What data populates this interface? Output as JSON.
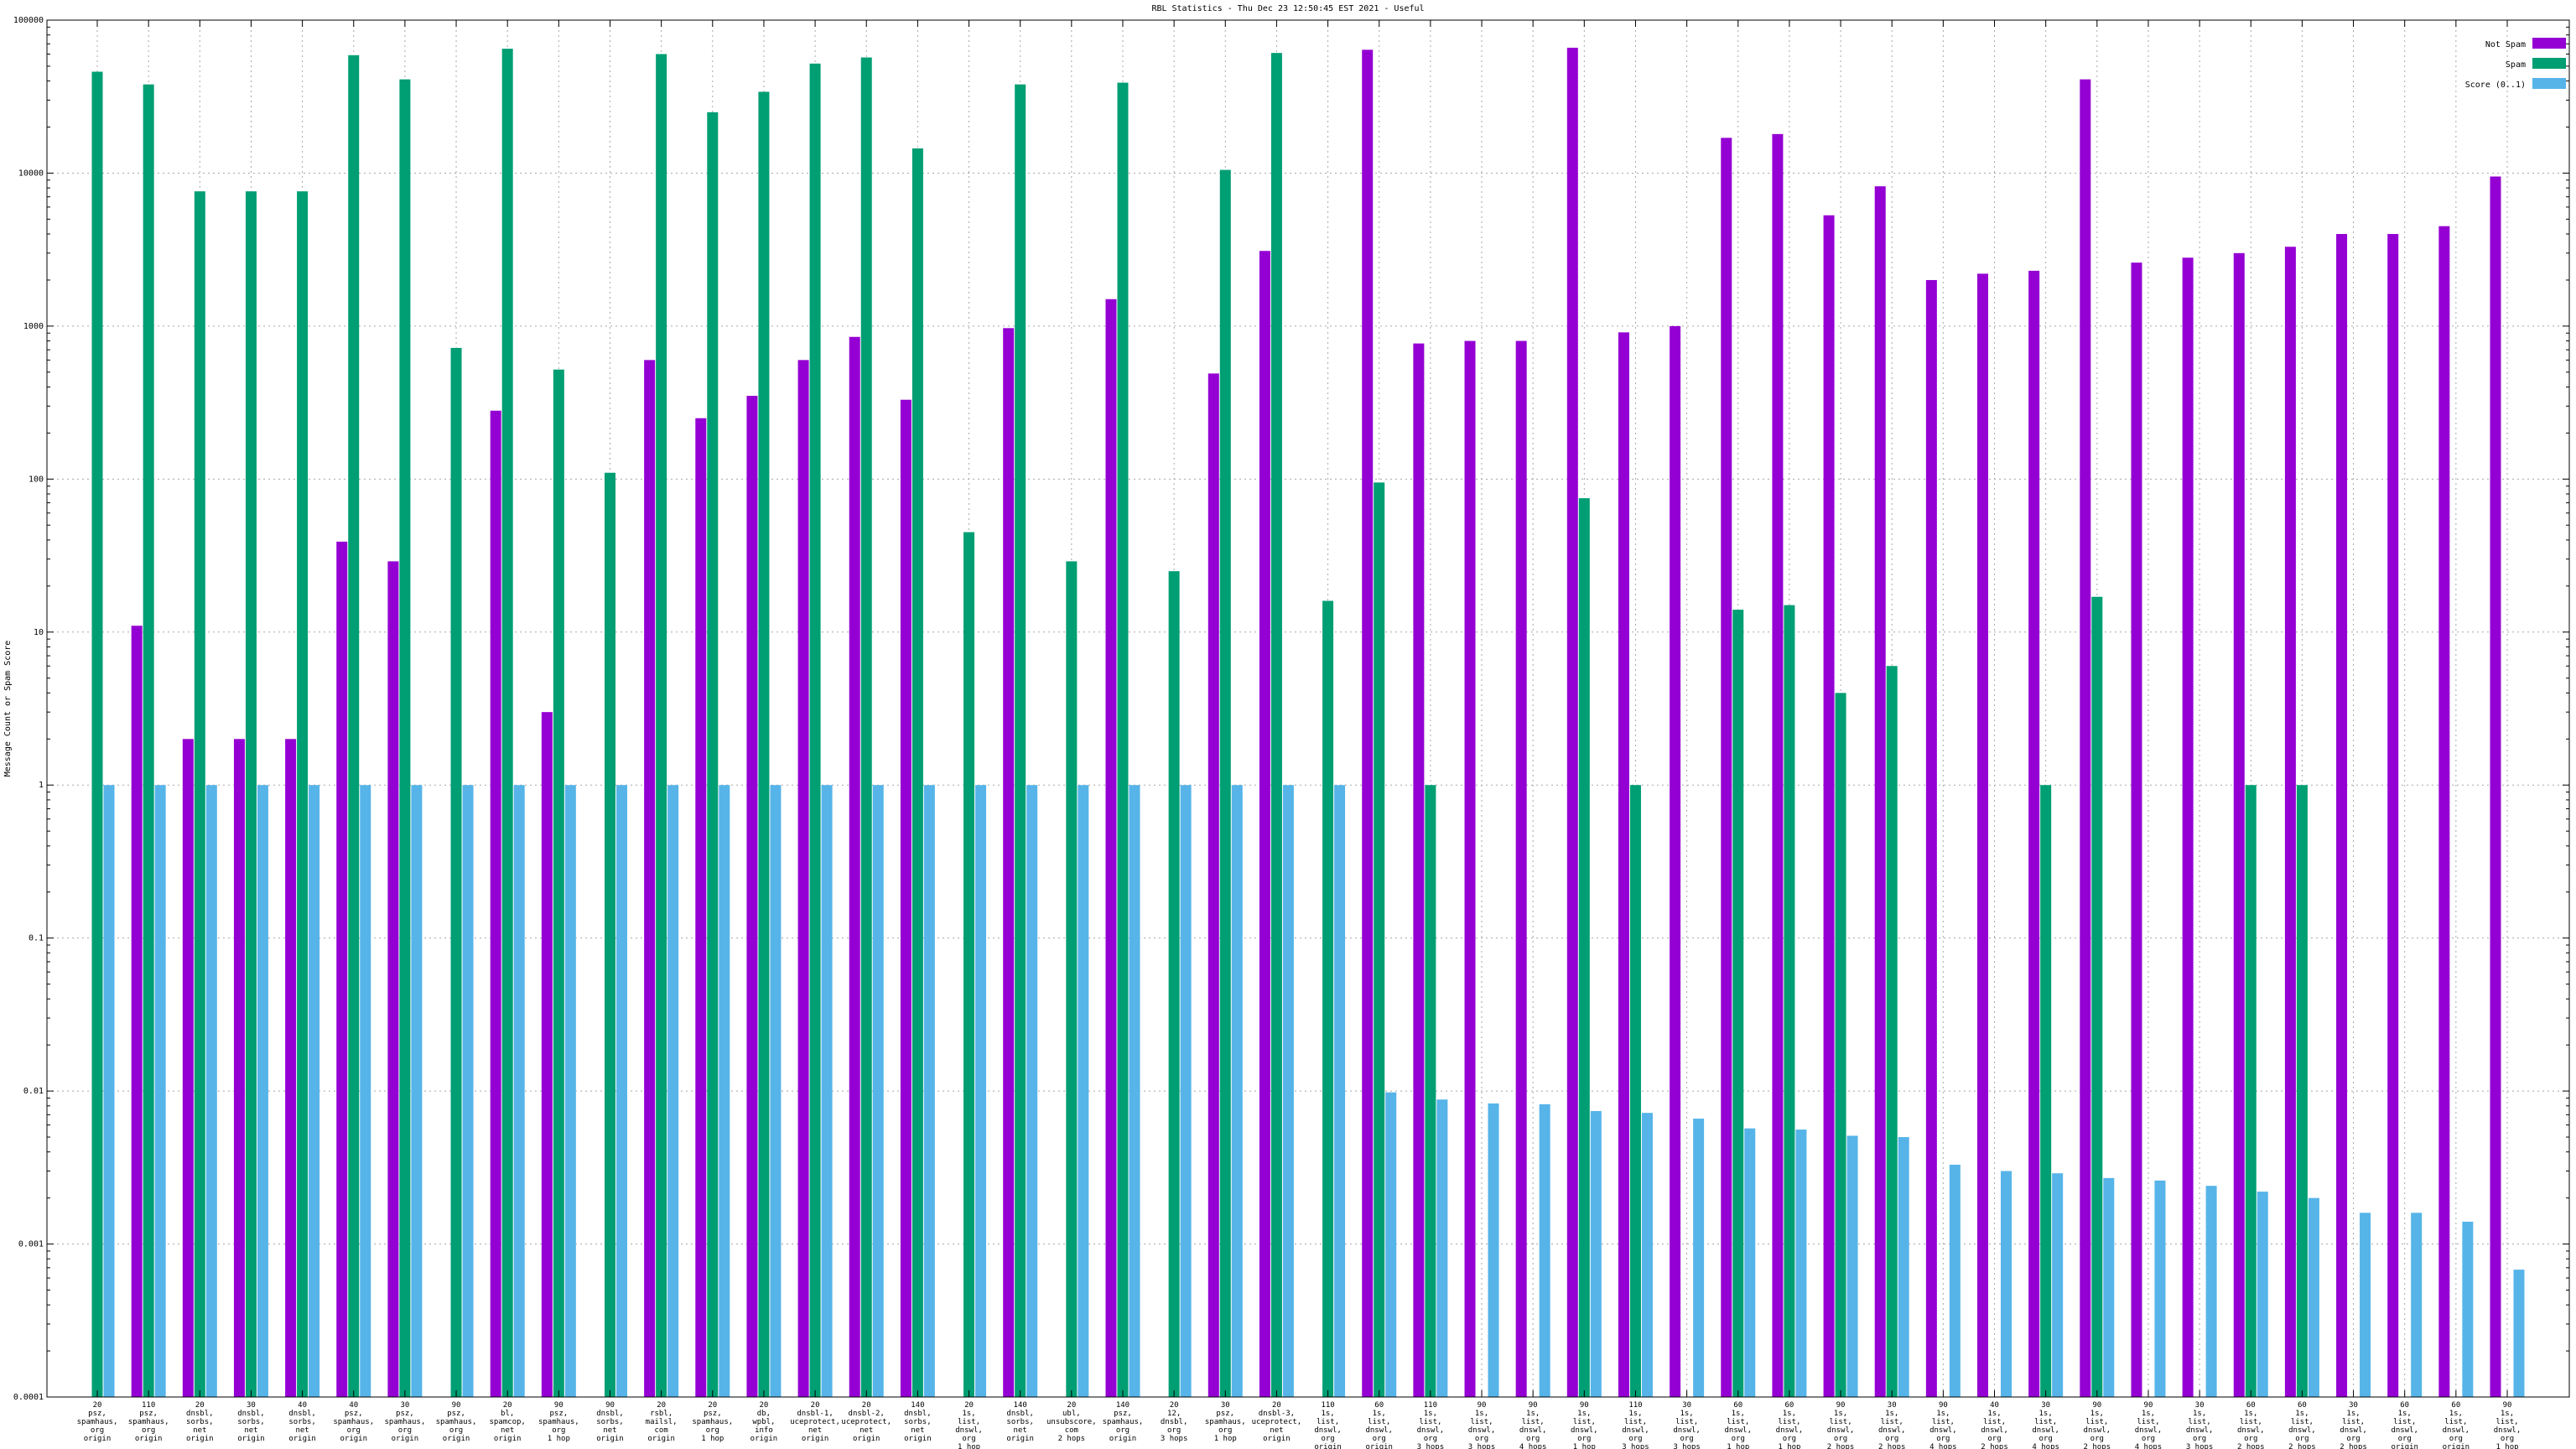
{
  "chart_data": {
    "type": "bar",
    "title": "RBL Statistics - Thu Dec 23 12:50:45 EST 2021 - Useful",
    "ylabel": "Message Count or Spam Score",
    "xlabel": "",
    "yscale": "log",
    "ylim": [
      0.0001,
      100000
    ],
    "yticks": [
      "0.0001",
      "0.001",
      "0.01",
      "0.1",
      "1",
      "10",
      "100",
      "1000",
      "10000",
      "100000"
    ],
    "grid": true,
    "legend_position": "top-right",
    "categories": [
      [
        "20",
        "psz,",
        "spamhaus,",
        "org",
        "origin"
      ],
      [
        "110",
        "psz,",
        "spamhaus,",
        "org",
        "origin"
      ],
      [
        "20",
        "dnsbl,",
        "sorbs,",
        "net",
        "origin"
      ],
      [
        "30",
        "dnsbl,",
        "sorbs,",
        "net",
        "origin"
      ],
      [
        "40",
        "dnsbl,",
        "sorbs,",
        "net",
        "origin"
      ],
      [
        "40",
        "psz,",
        "spamhaus,",
        "org",
        "origin"
      ],
      [
        "30",
        "psz,",
        "spamhaus,",
        "org",
        "origin"
      ],
      [
        "90",
        "psz,",
        "spamhaus,",
        "org",
        "origin"
      ],
      [
        "20",
        "bl,",
        "spamcop,",
        "net",
        "origin"
      ],
      [
        "90",
        "psz,",
        "spamhaus,",
        "org",
        "1 hop"
      ],
      [
        "90",
        "dnsbl,",
        "sorbs,",
        "net",
        "origin"
      ],
      [
        "20",
        "rsbl,",
        "mailsl,",
        "com",
        "origin"
      ],
      [
        "20",
        "psz,",
        "spamhaus,",
        "org",
        "1 hop"
      ],
      [
        "20",
        "db,",
        "wpbl,",
        "info",
        "origin"
      ],
      [
        "20",
        "dnsbl-1,",
        "uceprotect,",
        "net",
        "origin"
      ],
      [
        "20",
        "dnsbl-2,",
        "uceprotect,",
        "net",
        "origin"
      ],
      [
        "140",
        "dnsbl,",
        "sorbs,",
        "net",
        "origin"
      ],
      [
        "20",
        "1s,",
        "list,",
        "dnswl,",
        "org",
        "1 hop"
      ],
      [
        "140",
        "dnsbl,",
        "sorbs,",
        "net",
        "origin"
      ],
      [
        "20",
        "ubl,",
        "unsubscore,",
        "com",
        "2 hops"
      ],
      [
        "140",
        "psz,",
        "spamhaus,",
        "org",
        "origin"
      ],
      [
        "20",
        "12,",
        "dnsbl,",
        "org",
        "3 hops"
      ],
      [
        "30",
        "psz,",
        "spamhaus,",
        "org",
        "1 hop"
      ],
      [
        "20",
        "dnsbl-3,",
        "uceprotect,",
        "net",
        "origin"
      ],
      [
        "110",
        "1s,",
        "list,",
        "dnswl,",
        "org",
        "origin"
      ],
      [
        "60",
        "1s,",
        "list,",
        "dnswl,",
        "org",
        "origin"
      ],
      [
        "110",
        "1s,",
        "list,",
        "dnswl,",
        "org",
        "3 hops"
      ],
      [
        "90",
        "1s,",
        "list,",
        "dnswl,",
        "org",
        "3 hops"
      ],
      [
        "90",
        "1s,",
        "list,",
        "dnswl,",
        "org",
        "4 hops"
      ],
      [
        "90",
        "1s,",
        "list,",
        "dnswl,",
        "org",
        "1 hop"
      ],
      [
        "110",
        "1s,",
        "list,",
        "dnswl,",
        "org",
        "3 hops"
      ],
      [
        "30",
        "1s,",
        "list,",
        "dnswl,",
        "org",
        "3 hops"
      ],
      [
        "60",
        "1s,",
        "list,",
        "dnswl,",
        "org",
        "1 hop"
      ],
      [
        "60",
        "1s,",
        "list,",
        "dnswl,",
        "org",
        "1 hop"
      ],
      [
        "90",
        "1s,",
        "list,",
        "dnswl,",
        "org",
        "2 hops"
      ],
      [
        "30",
        "1s,",
        "list,",
        "dnswl,",
        "org",
        "2 hops"
      ],
      [
        "90",
        "1s,",
        "list,",
        "dnswl,",
        "org",
        "4 hops"
      ],
      [
        "40",
        "1s,",
        "list,",
        "dnswl,",
        "org",
        "2 hops"
      ],
      [
        "30",
        "1s,",
        "list,",
        "dnswl,",
        "org",
        "4 hops"
      ],
      [
        "90",
        "1s,",
        "list,",
        "dnswl,",
        "org",
        "2 hops"
      ],
      [
        "90",
        "1s,",
        "list,",
        "dnswl,",
        "org",
        "4 hops"
      ],
      [
        "30",
        "1s,",
        "list,",
        "dnswl,",
        "org",
        "3 hops"
      ],
      [
        "60",
        "1s,",
        "list,",
        "dnswl,",
        "org",
        "2 hops"
      ],
      [
        "60",
        "1s,",
        "list,",
        "dnswl,",
        "org",
        "2 hops"
      ],
      [
        "30",
        "1s,",
        "list,",
        "dnswl,",
        "org",
        "2 hops"
      ],
      [
        "60",
        "1s,",
        "list,",
        "dnswl,",
        "org",
        "origin"
      ],
      [
        "60",
        "1s,",
        "list,",
        "dnswl,",
        "org",
        "origin"
      ],
      [
        "90",
        "1s,",
        "list,",
        "dnswl,",
        "org",
        "1 hop"
      ]
    ],
    "series": [
      {
        "name": "Not Spam",
        "color": "#9400d3",
        "values": [
          null,
          11,
          2,
          2,
          2,
          39,
          29,
          null,
          280,
          3,
          null,
          600,
          250,
          350,
          600,
          850,
          330,
          null,
          970,
          null,
          1500,
          null,
          490,
          3100,
          null,
          64000,
          770,
          800,
          800,
          66000,
          910,
          1000,
          17000,
          18000,
          5300,
          8200,
          2000,
          2200,
          2300,
          41000,
          2600,
          2800,
          3000,
          3300,
          4000,
          4000,
          4500,
          9500
        ]
      },
      {
        "name": "Spam",
        "color": "#009e73",
        "values": [
          46000,
          38000,
          7600,
          7600,
          7600,
          59000,
          41000,
          720,
          65000,
          520,
          110,
          60000,
          25000,
          34000,
          52000,
          57000,
          14500,
          45,
          38000,
          29,
          39000,
          25,
          10500,
          61000,
          16,
          95,
          1,
          null,
          null,
          75,
          1,
          null,
          14,
          15,
          4,
          6,
          null,
          null,
          1,
          17,
          null,
          null,
          1,
          1,
          null,
          null,
          null,
          null
        ]
      },
      {
        "name": "Score (0..1)",
        "color": "#56b4e9",
        "values": [
          1,
          1,
          1,
          1,
          1,
          1,
          1,
          1,
          1,
          1,
          1,
          1,
          1,
          1,
          1,
          1,
          1,
          1,
          1,
          1,
          1,
          1,
          1,
          1,
          1,
          0.0098,
          0.0088,
          0.0083,
          0.0082,
          0.0074,
          0.0072,
          0.0066,
          0.0057,
          0.0056,
          0.0051,
          0.005,
          0.0033,
          0.003,
          0.0029,
          0.0027,
          0.0026,
          0.0024,
          0.0022,
          0.002,
          0.0016,
          0.0016,
          0.0014,
          0.00068
        ]
      }
    ]
  }
}
